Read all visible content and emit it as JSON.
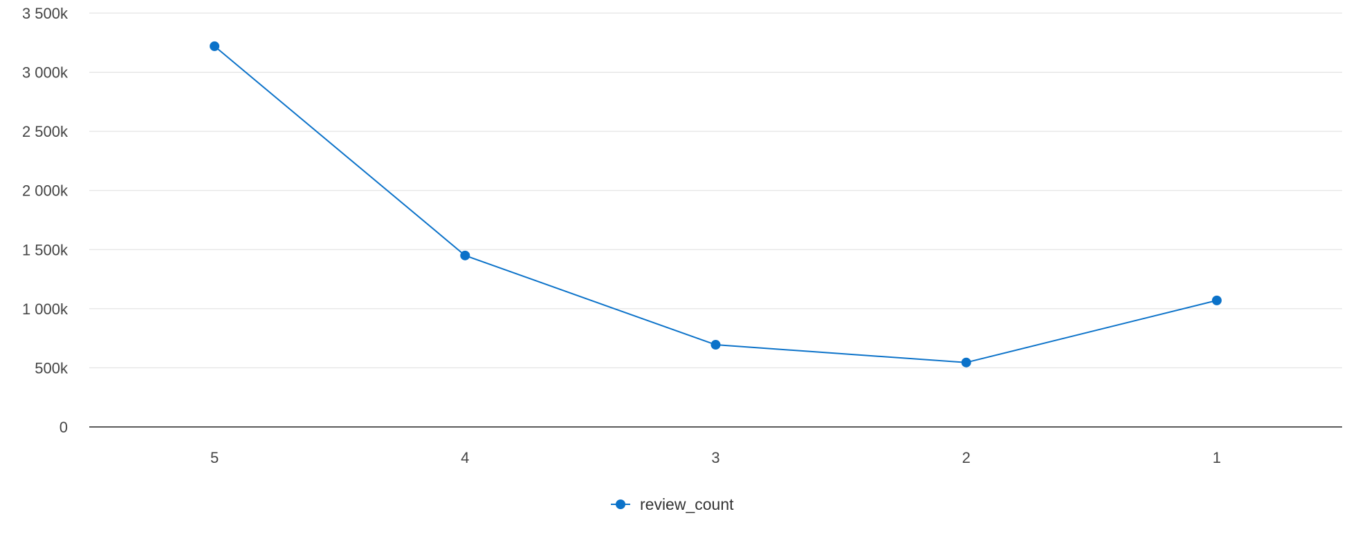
{
  "chart_data": {
    "type": "line",
    "title": "",
    "xlabel": "",
    "ylabel": "",
    "categories": [
      "5",
      "4",
      "3",
      "2",
      "1"
    ],
    "series": [
      {
        "name": "review_count",
        "color": "#0b72c9",
        "values": [
          3220000,
          1450000,
          695000,
          545000,
          1070000
        ]
      }
    ],
    "ylim": [
      0,
      3500000
    ],
    "y_ticks": [
      {
        "value": 0,
        "label": "0"
      },
      {
        "value": 500000,
        "label": "500k"
      },
      {
        "value": 1000000,
        "label": "1 000k"
      },
      {
        "value": 1500000,
        "label": "1 500k"
      },
      {
        "value": 2000000,
        "label": "2 000k"
      },
      {
        "value": 2500000,
        "label": "2 500k"
      },
      {
        "value": 3000000,
        "label": "3 000k"
      },
      {
        "value": 3500000,
        "label": "3 500k"
      }
    ],
    "grid": true,
    "legend": {
      "position": "bottom-center",
      "icon": "line-dot-icon"
    }
  }
}
